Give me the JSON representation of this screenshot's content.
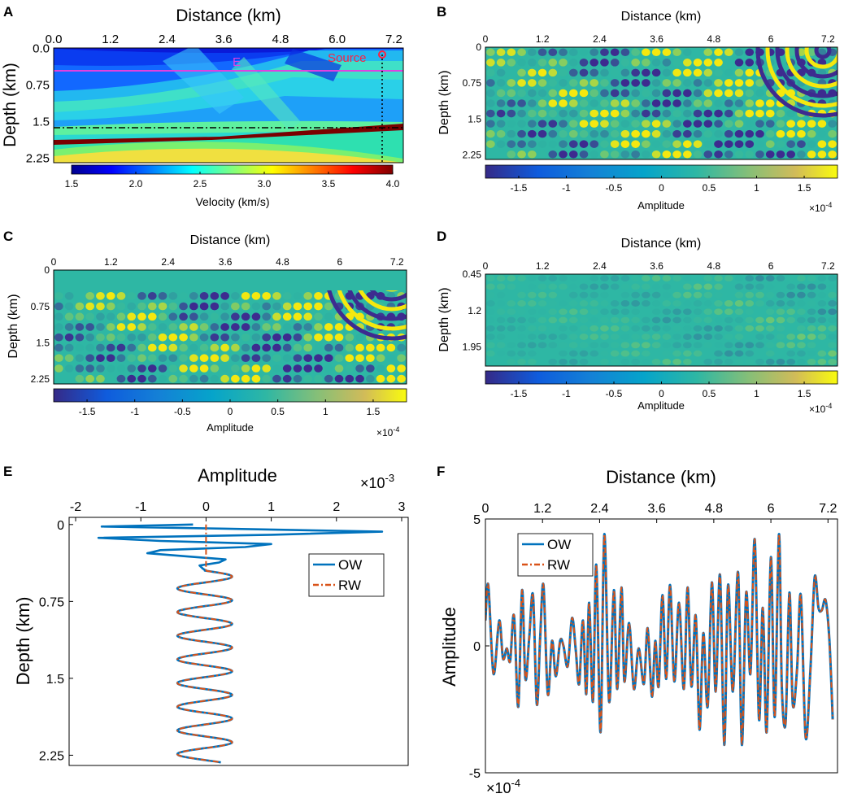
{
  "chart_data": [
    {
      "id": "A",
      "type": "heatmap",
      "panel_label": "A",
      "xlabel": "Distance (km)",
      "ylabel": "Depth (km)",
      "xticks": [
        "0.0",
        "1.2",
        "2.4",
        "3.6",
        "4.8",
        "6.0",
        "7.2"
      ],
      "yticks": [
        "0.0",
        "0.75",
        "1.5",
        "2.25"
      ],
      "xlim": [
        0,
        7.4
      ],
      "ylim": [
        0,
        2.35
      ],
      "colorbar_ticks": [
        "1.5",
        "2.0",
        "2.5",
        "3.0",
        "3.5",
        "4.0"
      ],
      "colorbar_label": "Velocity (km/s)",
      "colorbar_range": [
        1.5,
        4.0
      ],
      "annotations": {
        "marker_label": "E",
        "source_label": "Source"
      },
      "source_position": [
        6.9,
        0.1
      ],
      "horizontal_line_depth": 0.45,
      "dashdot_line_depth": 1.62,
      "vertical_dotted_x": 6.9
    },
    {
      "id": "B",
      "type": "heatmap",
      "panel_label": "B",
      "xlabel": "Distance (km)",
      "ylabel": "Depth (km)",
      "xticks": [
        "0",
        "1.2",
        "2.4",
        "3.6",
        "4.8",
        "6",
        "7.2"
      ],
      "yticks": [
        "0",
        "0.75",
        "1.5",
        "2.25"
      ],
      "xlim": [
        0,
        7.4
      ],
      "ylim": [
        0,
        2.35
      ],
      "colorbar_ticks": [
        "-1.5",
        "-1",
        "-0.5",
        "0",
        "0.5",
        "1",
        "1.5"
      ],
      "colorbar_label": "Amplitude",
      "colorbar_exponent": "×10",
      "colorbar_exponent_power": "-4",
      "colorbar_range": [
        -1.85,
        1.85
      ]
    },
    {
      "id": "C",
      "type": "heatmap",
      "panel_label": "C",
      "xlabel": "Distance (km)",
      "ylabel": "Depth (km)",
      "xticks": [
        "0",
        "1.2",
        "2.4",
        "3.6",
        "4.8",
        "6",
        "7.2"
      ],
      "yticks": [
        "0",
        "0.75",
        "1.5",
        "2.25"
      ],
      "xlim": [
        0,
        7.4
      ],
      "ylim": [
        0,
        2.35
      ],
      "colorbar_ticks": [
        "-1.5",
        "-1",
        "-0.5",
        "0",
        "0.5",
        "1",
        "1.5"
      ],
      "colorbar_label": "Amplitude",
      "colorbar_exponent": "×10",
      "colorbar_exponent_power": "-4",
      "colorbar_range": [
        -1.85,
        1.85
      ],
      "muted_above_depth": 0.45
    },
    {
      "id": "D",
      "type": "heatmap",
      "panel_label": "D",
      "xlabel": "Distance (km)",
      "ylabel": "Depth (km)",
      "xticks": [
        "0",
        "1.2",
        "2.4",
        "3.6",
        "4.8",
        "6",
        "7.2"
      ],
      "yticks": [
        "0.45",
        "1.2",
        "1.95"
      ],
      "xlim": [
        0,
        7.4
      ],
      "ylim": [
        0.45,
        2.35
      ],
      "colorbar_ticks": [
        "-1.5",
        "-1",
        "-0.5",
        "0",
        "0.5",
        "1",
        "1.5"
      ],
      "colorbar_label": "Amplitude",
      "colorbar_exponent": "×10",
      "colorbar_exponent_power": "-4",
      "colorbar_range": [
        -1.85,
        1.85
      ]
    },
    {
      "id": "E",
      "type": "line",
      "panel_label": "E",
      "title": "Amplitude",
      "ylabel": "Depth (km)",
      "xticks": [
        "-2",
        "-1",
        "0",
        "1",
        "2",
        "3"
      ],
      "x_tick_values": [
        -2,
        -1,
        0,
        1,
        2,
        3
      ],
      "yticks": [
        "0",
        "0.75",
        "1.5",
        "2.25"
      ],
      "y_tick_values": [
        0,
        0.75,
        1.5,
        2.25
      ],
      "xlim": [
        -2.1,
        3.1
      ],
      "ylim": [
        -0.07,
        2.35
      ],
      "exponent": "×10",
      "exponent_power": "-3",
      "legend": [
        "OW",
        "RW"
      ],
      "legend_position": "right-middle",
      "series": [
        {
          "name": "OW",
          "color": "#0072BD",
          "style": "solid",
          "depth": [
            0,
            0.02,
            0.04,
            0.07,
            0.1,
            0.13,
            0.16,
            0.19,
            0.22,
            0.25,
            0.28,
            0.31,
            0.34,
            0.37,
            0.4,
            0.43,
            0.45
          ],
          "amplitude": [
            -0.2,
            -1.6,
            0.3,
            2.7,
            1.0,
            -1.65,
            -0.7,
            1.0,
            0.6,
            -0.7,
            -0.9,
            -0.3,
            0.3,
            0.2,
            -0.1,
            -0.05,
            0.0
          ]
        },
        {
          "name": "RW",
          "color": "#D95319",
          "style": "dashdot",
          "depth": [
            0,
            0.45
          ],
          "amplitude": [
            0,
            0
          ]
        }
      ],
      "shared_tail": {
        "depth_start": 0.45,
        "depth_end": 2.32,
        "center": -0.02,
        "amplitude": 0.42,
        "cycles": 8.1
      }
    },
    {
      "id": "F",
      "type": "line",
      "panel_label": "F",
      "title": "Distance (km)",
      "ylabel": "Amplitude",
      "xticks": [
        "0",
        "1.2",
        "2.4",
        "3.6",
        "4.8",
        "6",
        "7.2"
      ],
      "x_tick_values": [
        0,
        1.2,
        2.4,
        3.6,
        4.8,
        6,
        7.2
      ],
      "yticks": [
        "5",
        "0",
        "-5"
      ],
      "y_tick_values": [
        5,
        0,
        -5
      ],
      "xlim": [
        0,
        7.4
      ],
      "ylim": [
        -5,
        5
      ],
      "exponent": "×10",
      "exponent_power": "-4",
      "legend": [
        "OW",
        "RW"
      ],
      "legend_position": "top-left",
      "series": [
        {
          "name": "OW",
          "color": "#0072BD",
          "style": "solid",
          "x": [
            0,
            0.06,
            0.17,
            0.29,
            0.37,
            0.45,
            0.52,
            0.6,
            0.69,
            0.77,
            0.84,
            0.92,
            1.0,
            1.08,
            1.15,
            1.22,
            1.31,
            1.4,
            1.48,
            1.57,
            1.64,
            1.73,
            1.82,
            1.9,
            1.97,
            2.05,
            2.12,
            2.18,
            2.26,
            2.33,
            2.42,
            2.5,
            2.6,
            2.7,
            2.77,
            2.86,
            2.92,
            3.02,
            3.12,
            3.22,
            3.33,
            3.41,
            3.5,
            3.57,
            3.64,
            3.72,
            3.8,
            3.88,
            3.97,
            4.07,
            4.17,
            4.25,
            4.33,
            4.42,
            4.5,
            4.58,
            4.67,
            4.76,
            4.84,
            4.93,
            5.02,
            5.1,
            5.2,
            5.31,
            5.39,
            5.48,
            5.57,
            5.66,
            5.75,
            5.83,
            5.91,
            6.0,
            6.08,
            6.17,
            6.23,
            6.31,
            6.39,
            6.46,
            6.55,
            6.63,
            6.73,
            6.83,
            6.92,
            7.0,
            7.07,
            7.15,
            7.23,
            7.3
          ],
          "y": [
            1.0,
            2.4,
            -1.1,
            1.0,
            -0.5,
            -0.1,
            -0.6,
            1.2,
            -2.4,
            2.2,
            -1.3,
            0.3,
            2.0,
            -2.3,
            0.3,
            2.4,
            -1.9,
            0.2,
            -1.2,
            0.2,
            0.0,
            -0.8,
            1.1,
            -0.2,
            -1.5,
            1.0,
            -1.9,
            1.7,
            -2.2,
            3.2,
            -3.4,
            4.4,
            -2.2,
            2.2,
            -1.7,
            2.3,
            -1.4,
            0.9,
            -1.7,
            -0.1,
            -1.5,
            0.7,
            -2.0,
            0.2,
            -1.6,
            2.0,
            -1.3,
            2.4,
            -1.4,
            1.7,
            -1.7,
            2.3,
            -1.6,
            1.2,
            -3.3,
            0.5,
            -2.4,
            2.5,
            -1.8,
            2.8,
            -3.9,
            2.4,
            -1.8,
            2.9,
            -3.9,
            2.1,
            -1.1,
            4.2,
            -2.9,
            1.5,
            -3.4,
            3.5,
            -2.8,
            4.4,
            -1.6,
            -3.0,
            2.1,
            -2.3,
            -0.9,
            2.0,
            -3.6,
            -1.0,
            2.7,
            1.5,
            1.4,
            1.8,
            0.2,
            -2.9
          ]
        },
        {
          "name": "RW",
          "color": "#D95319",
          "style": "dashdot",
          "same_as": "OW"
        }
      ]
    }
  ]
}
